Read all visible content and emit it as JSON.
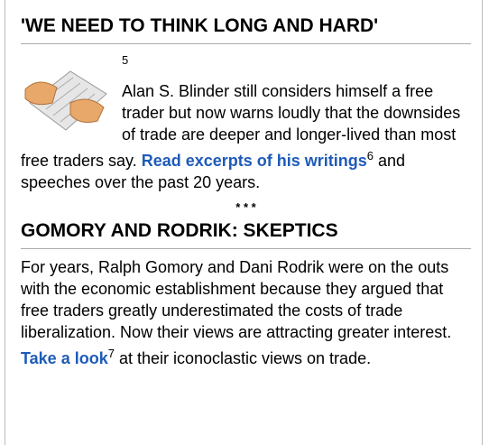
{
  "sections": [
    {
      "title": "'WE NEED TO THINK LONG AND HARD'",
      "image_note": "5",
      "paragraph": {
        "before": "Alan S. Blinder still considers himself a free trader but now warns loudly that the downsides of trade are deeper and longer-lived than most free traders say. ",
        "link": "Read excerpts of his writings",
        "note": "6",
        "after": " and speeches over the past 20 years."
      }
    },
    {
      "title": "GOMORY AND RODRIK: SKEPTICS",
      "paragraph": {
        "before": "For years, Ralph Gomory and Dani Rodrik were on the outs with the economic establishment because they argued that free traders greatly underestimated the costs of trade liberalization. Now their views are attracting greater interest. ",
        "link": "Take a look",
        "note": "7",
        "after": " at their iconoclastic views on trade."
      }
    }
  ],
  "separator": "* * *"
}
